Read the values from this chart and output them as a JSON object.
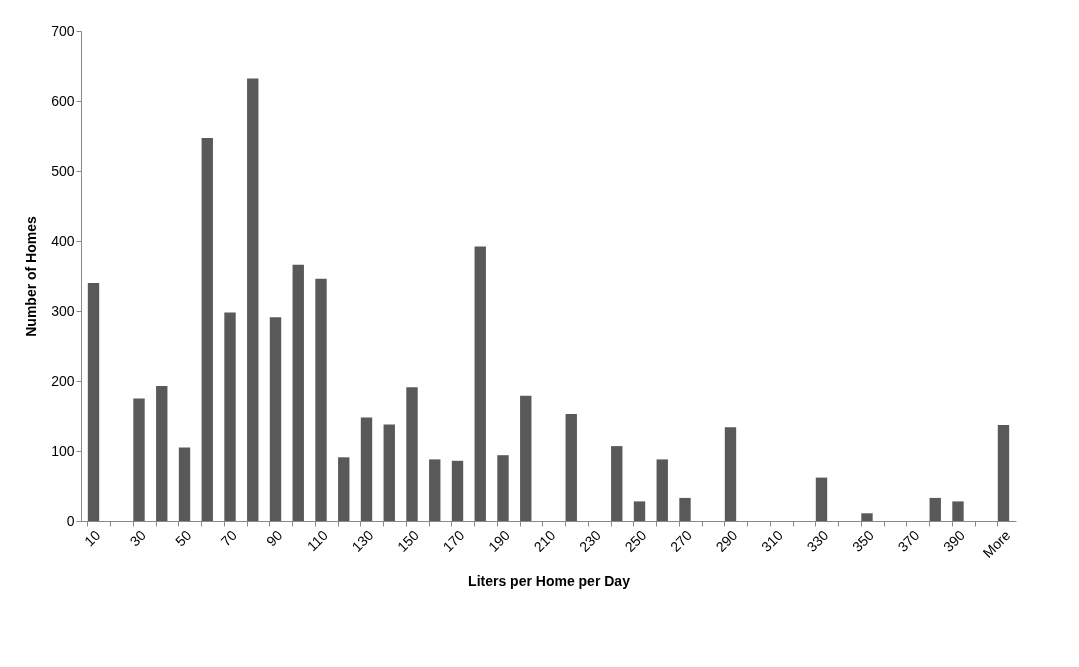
{
  "chart_data": {
    "type": "bar",
    "xlabel": "Liters per Home per Day",
    "ylabel": "Number of Homes",
    "categories": [
      "10",
      null,
      "30",
      null,
      "50",
      null,
      "70",
      null,
      "90",
      null,
      "110",
      null,
      "130",
      null,
      "150",
      null,
      "170",
      null,
      "190",
      null,
      "210",
      null,
      "230",
      null,
      "250",
      null,
      "270",
      null,
      "290",
      null,
      "310",
      null,
      "330",
      null,
      "350",
      null,
      "370",
      null,
      "390",
      null,
      "More"
    ],
    "values": [
      340,
      0,
      175,
      193,
      105,
      547,
      298,
      632,
      291,
      366,
      346,
      91,
      148,
      138,
      191,
      88,
      86,
      392,
      94,
      179,
      0,
      153,
      0,
      107,
      28,
      88,
      33,
      0,
      134,
      0,
      0,
      0,
      62,
      0,
      11,
      0,
      0,
      33,
      28,
      0,
      137
    ],
    "color": "#595959",
    "ylim": [
      0,
      700
    ],
    "yticks": [
      0,
      100,
      200,
      300,
      400,
      500,
      600,
      700
    ],
    "grid": false
  }
}
